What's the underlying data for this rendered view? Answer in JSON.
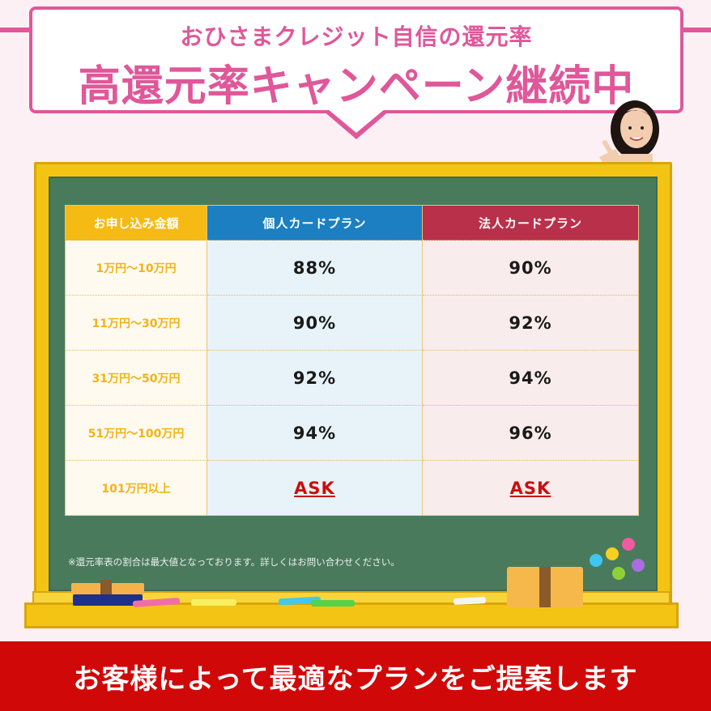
{
  "banner": {
    "subtitle": "おひさまクレジット自信の還元率",
    "title": "高還元率キャンペーン継続中"
  },
  "table": {
    "headers": [
      "お申し込み金額",
      "個人カードプラン",
      "法人カードプラン"
    ],
    "rows": [
      {
        "amount": "1万円～10万円",
        "personal": "88%",
        "corporate": "90%"
      },
      {
        "amount": "11万円～30万円",
        "personal": "90%",
        "corporate": "92%"
      },
      {
        "amount": "31万円～50万円",
        "personal": "92%",
        "corporate": "94%"
      },
      {
        "amount": "51万円～100万円",
        "personal": "94%",
        "corporate": "96%"
      },
      {
        "amount": "101万円以上",
        "personal": "ASK",
        "corporate": "ASK"
      }
    ]
  },
  "note": "※還元率表の割合は最大値となっております。詳しくはお問い合わせください。",
  "bottom": {
    "text": "お客様によって最適なプランをご提案します"
  },
  "colors": {
    "pink": "#e0579a",
    "board": "#4a7a5c",
    "frame": "#f4c414",
    "personal_header": "#1b7fc2",
    "corporate_header": "#b9304a",
    "amount_header": "#f6ba15",
    "ask": "#c81010",
    "bottom_band": "#d10808"
  }
}
